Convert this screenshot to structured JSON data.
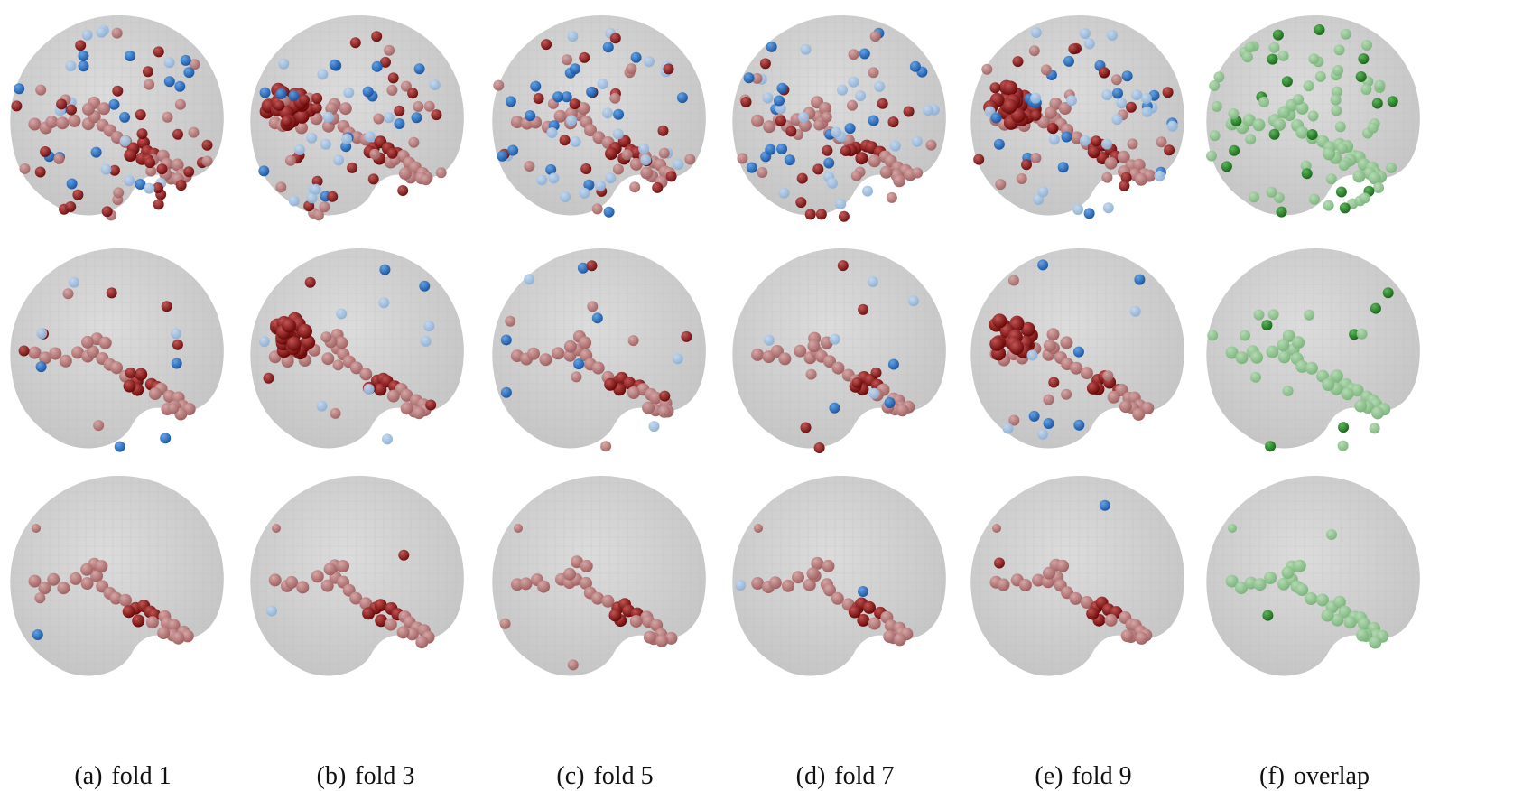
{
  "colors": {
    "brain": "#c8c8c8",
    "positive": "#7a0c0c",
    "negative": "#1c64b8",
    "overlap": "#1e7a1e"
  },
  "columns": [
    {
      "label": "(a)",
      "text": "fold 1",
      "kind": "fold"
    },
    {
      "label": "(b)",
      "text": "fold 3",
      "kind": "fold"
    },
    {
      "label": "(c)",
      "text": "fold 5",
      "kind": "fold"
    },
    {
      "label": "(d)",
      "text": "fold 7",
      "kind": "fold"
    },
    {
      "label": "(e)",
      "text": "fold 9",
      "kind": "fold"
    },
    {
      "label": "(f)",
      "text": "overlap",
      "kind": "overlap"
    }
  ],
  "rows": [
    {
      "density": "high"
    },
    {
      "density": "medium"
    },
    {
      "density": "low"
    }
  ]
}
